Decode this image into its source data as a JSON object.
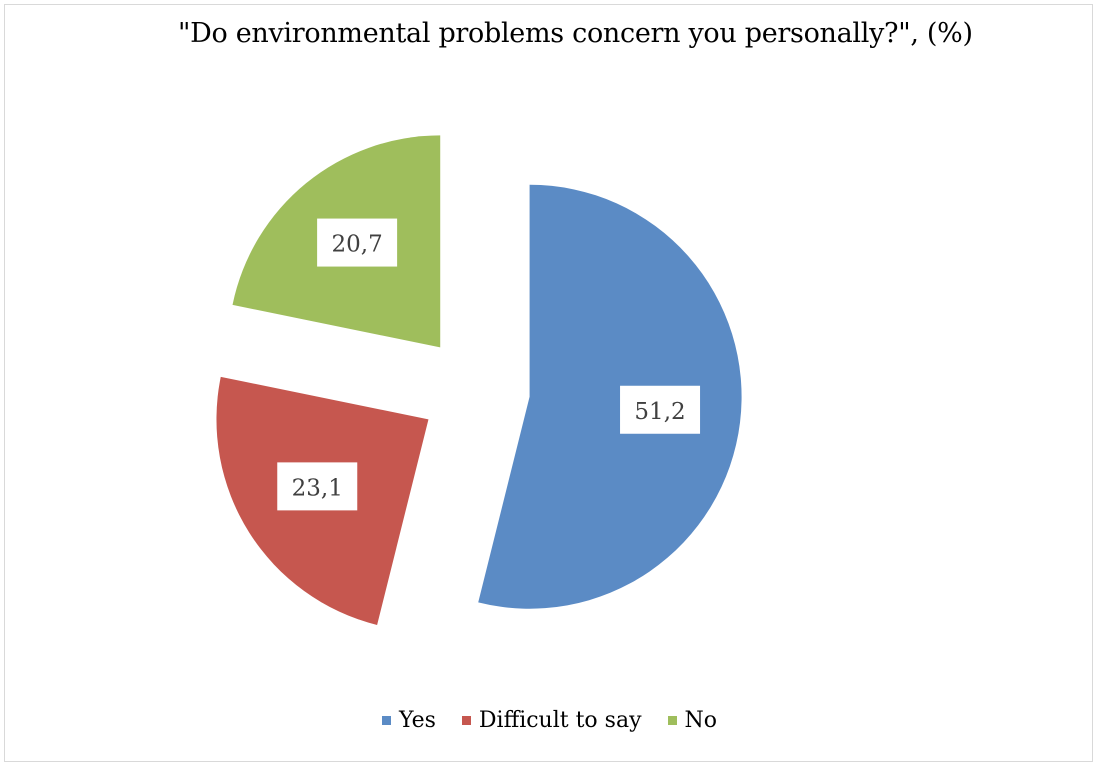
{
  "chart_data": {
    "type": "pie",
    "title": "\"Do environmental problems concern you personally?\", (%)",
    "series": [
      {
        "name": "Yes",
        "value": 51.2,
        "label": "51,2",
        "color": "#5b8bc5"
      },
      {
        "name": "Difficult to say",
        "value": 23.1,
        "label": "23,1",
        "color": "#c6574f"
      },
      {
        "name": "No",
        "value": 20.7,
        "label": "20,7",
        "color": "#9fbe5c"
      }
    ],
    "legend_position": "bottom",
    "exploded": true
  }
}
